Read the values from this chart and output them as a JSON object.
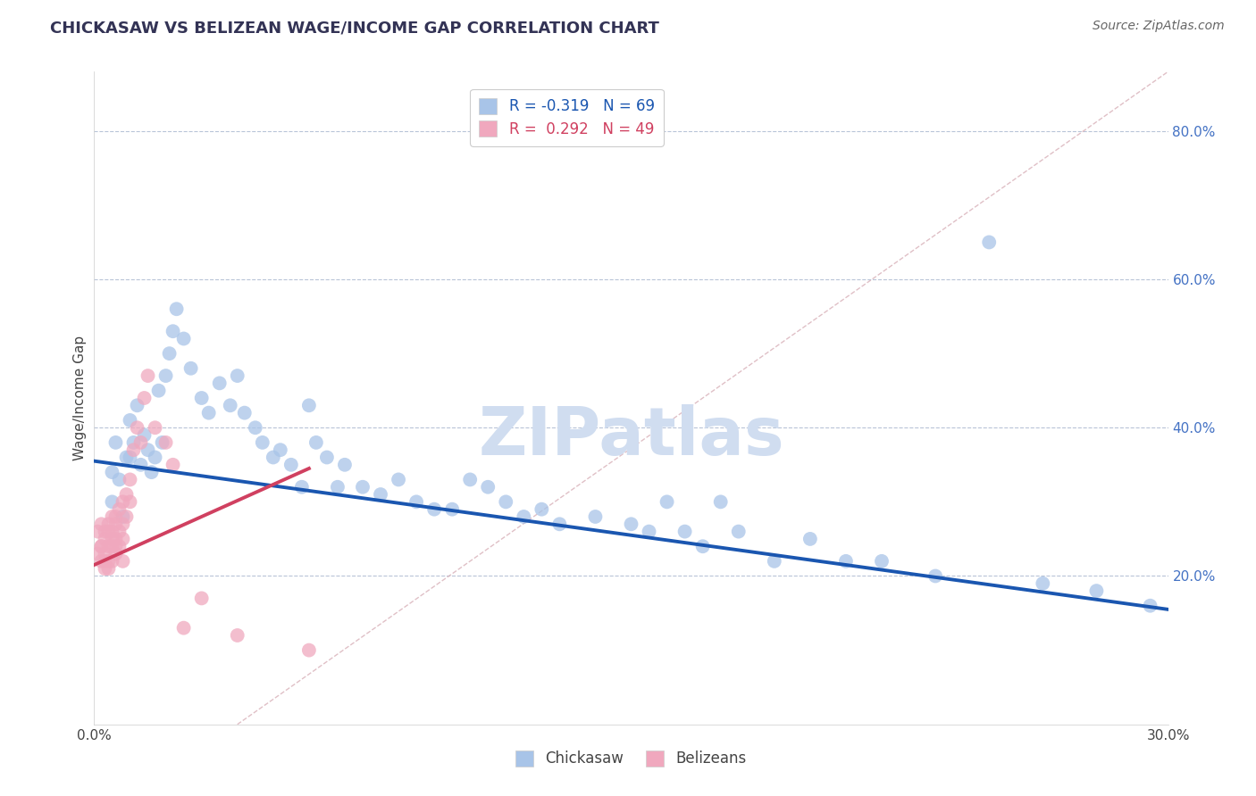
{
  "title": "CHICKASAW VS BELIZEAN WAGE/INCOME GAP CORRELATION CHART",
  "source": "Source: ZipAtlas.com",
  "ylabel": "Wage/Income Gap",
  "xlim": [
    0.0,
    0.3
  ],
  "ylim": [
    0.0,
    0.88
  ],
  "yticks_right": [
    0.2,
    0.4,
    0.6,
    0.8
  ],
  "ytick_right_labels": [
    "20.0%",
    "40.0%",
    "60.0%",
    "80.0%"
  ],
  "chickasaw_color": "#a8c4e8",
  "belizean_color": "#f0a8be",
  "chickasaw_line_color": "#1a56b0",
  "belizean_line_color": "#d04060",
  "R_chickasaw": -0.319,
  "N_chickasaw": 69,
  "R_belizean": 0.292,
  "N_belizean": 49,
  "watermark": "ZIPatlas",
  "watermark_color": "#d0ddf0",
  "legend_label_chickasaw": "Chickasaw",
  "legend_label_belizean": "Belizeans",
  "chickasaw_x": [
    0.005,
    0.005,
    0.006,
    0.007,
    0.008,
    0.009,
    0.01,
    0.01,
    0.011,
    0.012,
    0.013,
    0.014,
    0.015,
    0.016,
    0.017,
    0.018,
    0.019,
    0.02,
    0.021,
    0.022,
    0.023,
    0.025,
    0.027,
    0.03,
    0.032,
    0.035,
    0.038,
    0.04,
    0.042,
    0.045,
    0.047,
    0.05,
    0.052,
    0.055,
    0.058,
    0.06,
    0.062,
    0.065,
    0.068,
    0.07,
    0.075,
    0.08,
    0.085,
    0.09,
    0.095,
    0.1,
    0.105,
    0.11,
    0.115,
    0.12,
    0.125,
    0.13,
    0.14,
    0.15,
    0.155,
    0.16,
    0.165,
    0.17,
    0.175,
    0.18,
    0.19,
    0.2,
    0.21,
    0.22,
    0.235,
    0.25,
    0.265,
    0.28,
    0.295
  ],
  "chickasaw_y": [
    0.34,
    0.3,
    0.38,
    0.33,
    0.28,
    0.36,
    0.41,
    0.36,
    0.38,
    0.43,
    0.35,
    0.39,
    0.37,
    0.34,
    0.36,
    0.45,
    0.38,
    0.47,
    0.5,
    0.53,
    0.56,
    0.52,
    0.48,
    0.44,
    0.42,
    0.46,
    0.43,
    0.47,
    0.42,
    0.4,
    0.38,
    0.36,
    0.37,
    0.35,
    0.32,
    0.43,
    0.38,
    0.36,
    0.32,
    0.35,
    0.32,
    0.31,
    0.33,
    0.3,
    0.29,
    0.29,
    0.33,
    0.32,
    0.3,
    0.28,
    0.29,
    0.27,
    0.28,
    0.27,
    0.26,
    0.3,
    0.26,
    0.24,
    0.3,
    0.26,
    0.22,
    0.25,
    0.22,
    0.22,
    0.2,
    0.65,
    0.19,
    0.18,
    0.16
  ],
  "belizean_x": [
    0.001,
    0.001,
    0.002,
    0.002,
    0.002,
    0.002,
    0.003,
    0.003,
    0.003,
    0.003,
    0.003,
    0.004,
    0.004,
    0.004,
    0.004,
    0.004,
    0.005,
    0.005,
    0.005,
    0.005,
    0.005,
    0.006,
    0.006,
    0.006,
    0.006,
    0.006,
    0.007,
    0.007,
    0.007,
    0.008,
    0.008,
    0.008,
    0.008,
    0.009,
    0.009,
    0.01,
    0.01,
    0.011,
    0.012,
    0.013,
    0.014,
    0.015,
    0.017,
    0.02,
    0.022,
    0.025,
    0.03,
    0.04,
    0.06
  ],
  "belizean_y": [
    0.23,
    0.26,
    0.24,
    0.27,
    0.22,
    0.24,
    0.26,
    0.23,
    0.25,
    0.22,
    0.21,
    0.26,
    0.24,
    0.22,
    0.27,
    0.21,
    0.28,
    0.25,
    0.24,
    0.26,
    0.22,
    0.28,
    0.24,
    0.27,
    0.25,
    0.23,
    0.29,
    0.26,
    0.24,
    0.3,
    0.27,
    0.25,
    0.22,
    0.31,
    0.28,
    0.33,
    0.3,
    0.37,
    0.4,
    0.38,
    0.44,
    0.47,
    0.4,
    0.38,
    0.35,
    0.13,
    0.17,
    0.12,
    0.1
  ],
  "blue_trend_x": [
    0.0,
    0.3
  ],
  "blue_trend_y": [
    0.355,
    0.155
  ],
  "pink_trend_x": [
    0.0,
    0.06
  ],
  "pink_trend_y": [
    0.215,
    0.345
  ]
}
